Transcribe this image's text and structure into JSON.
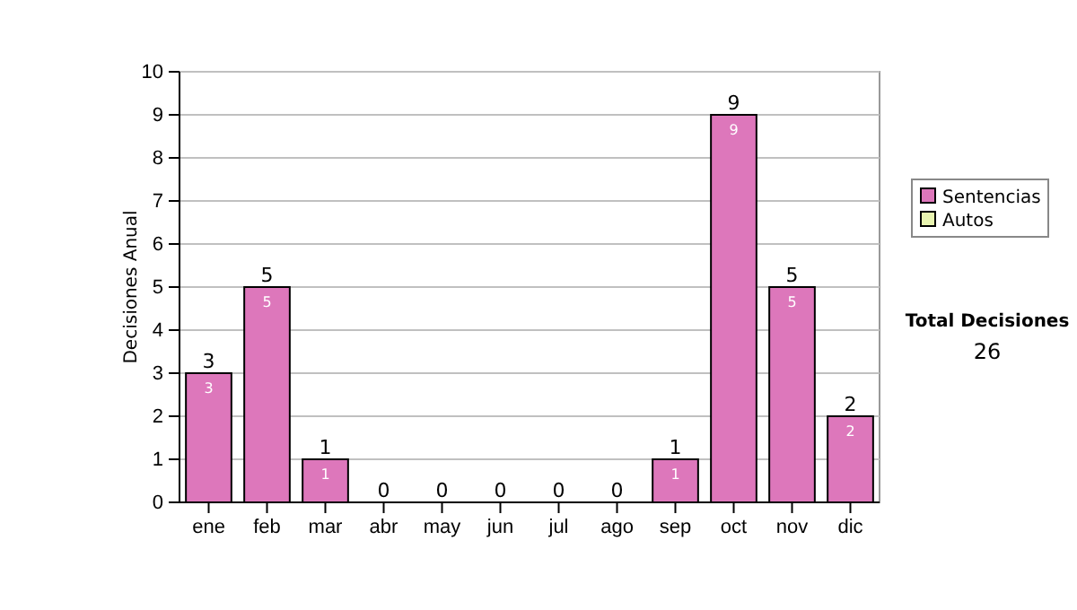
{
  "chart_data": {
    "type": "bar",
    "stacked": true,
    "ylabel": "Decisiones Anual",
    "categories": [
      "ene",
      "feb",
      "mar",
      "abr",
      "may",
      "jun",
      "jul",
      "ago",
      "sep",
      "oct",
      "nov",
      "dic"
    ],
    "series": [
      {
        "name": "Sentencias",
        "color": "#dd77bb",
        "values": [
          3,
          5,
          1,
          0,
          0,
          0,
          0,
          0,
          1,
          9,
          5,
          2
        ],
        "value_labels": [
          "3",
          "5",
          "1",
          null,
          null,
          null,
          null,
          null,
          "1",
          "9",
          "5",
          "2"
        ]
      },
      {
        "name": "Autos",
        "color": "#e8f4b0",
        "values": [
          0,
          0,
          0,
          0,
          0,
          0,
          0,
          0,
          0,
          0,
          0,
          0
        ],
        "value_labels": [
          null,
          null,
          null,
          null,
          null,
          null,
          null,
          null,
          null,
          null,
          null,
          null
        ]
      }
    ],
    "totals": [
      "3",
      "5",
      "1",
      "0",
      "0",
      "0",
      "0",
      "0",
      "1",
      "9",
      "5",
      "2"
    ],
    "ylim": [
      0,
      10
    ],
    "yticks": [
      0,
      1,
      2,
      3,
      4,
      5,
      6,
      7,
      8,
      9,
      10
    ],
    "grid": "y",
    "legend": "right",
    "annotations": [
      "Total Decisiones",
      "26"
    ]
  }
}
